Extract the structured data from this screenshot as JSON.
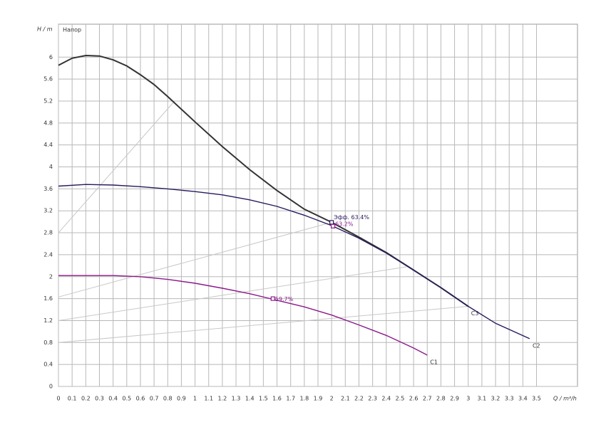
{
  "chart_data": {
    "type": "line",
    "y_label": "H / m",
    "title": "Напор",
    "x_label": "Q / m³/h",
    "xlim": [
      0,
      3.8
    ],
    "ylim": [
      0,
      6.6
    ],
    "xticks": [
      0,
      0.1,
      0.2,
      0.3,
      0.4,
      0.5,
      0.6,
      0.7,
      0.8,
      0.9,
      1,
      1.1,
      1.2,
      1.3,
      1.4,
      1.5,
      1.6,
      1.7,
      1.8,
      1.9,
      2,
      2.1,
      2.2,
      2.3,
      2.4,
      2.5,
      2.6,
      2.7,
      2.8,
      2.9,
      3,
      3.1,
      3.2,
      3.3,
      3.4,
      3.5
    ],
    "yticks": [
      0,
      0.4,
      0.8,
      1.2,
      1.6,
      2,
      2.4,
      2.8,
      3.2,
      3.6,
      4,
      4.4,
      4.8,
      5.2,
      5.6,
      6
    ],
    "grid": true,
    "series": [
      {
        "name": "C3",
        "color": "#333333",
        "x": [
          0,
          0.1,
          0.2,
          0.3,
          0.4,
          0.5,
          0.6,
          0.7,
          0.8,
          0.9,
          1.0,
          1.2,
          1.4,
          1.6,
          1.8,
          2.0,
          2.2,
          2.4,
          2.6,
          2.8,
          3.0
        ],
        "values": [
          5.85,
          5.98,
          6.03,
          6.02,
          5.95,
          5.84,
          5.68,
          5.5,
          5.28,
          5.05,
          4.82,
          4.37,
          3.95,
          3.57,
          3.23,
          2.99,
          2.72,
          2.44,
          2.12,
          1.8,
          1.46
        ]
      },
      {
        "name": "C2",
        "color": "#2a1a5e",
        "x": [
          0,
          0.2,
          0.4,
          0.6,
          0.8,
          1.0,
          1.2,
          1.4,
          1.6,
          1.8,
          2.0,
          2.2,
          2.4,
          2.6,
          2.8,
          3.0,
          3.2,
          3.45
        ],
        "values": [
          3.65,
          3.68,
          3.67,
          3.64,
          3.6,
          3.55,
          3.49,
          3.4,
          3.28,
          3.12,
          2.93,
          2.7,
          2.43,
          2.12,
          1.8,
          1.46,
          1.15,
          0.87
        ]
      },
      {
        "name": "C1",
        "color": "#8b1a8b",
        "x": [
          0,
          0.2,
          0.4,
          0.6,
          0.8,
          1.0,
          1.2,
          1.4,
          1.6,
          1.8,
          2.0,
          2.2,
          2.4,
          2.6,
          2.7
        ],
        "values": [
          2.02,
          2.02,
          2.02,
          2.0,
          1.95,
          1.88,
          1.79,
          1.69,
          1.57,
          1.45,
          1.3,
          1.12,
          0.93,
          0.7,
          0.57
        ]
      }
    ],
    "guide_lines": [
      {
        "color": "#c8c8c8",
        "x": [
          0,
          0.85
        ],
        "values": [
          2.8,
          5.2
        ]
      },
      {
        "color": "#c8c8c8",
        "x": [
          0,
          2.0
        ],
        "values": [
          1.63,
          2.99
        ]
      },
      {
        "color": "#c8c8c8",
        "x": [
          0,
          2.55
        ],
        "values": [
          1.2,
          2.18
        ]
      },
      {
        "color": "#c8c8c8",
        "x": [
          0,
          3.0
        ],
        "values": [
          0.8,
          1.46
        ]
      }
    ],
    "annotations": [
      {
        "x": 2.0,
        "y": 2.99,
        "label": "Эфф. 63.4%",
        "color": "#2a1a5e"
      },
      {
        "x": 2.01,
        "y": 2.92,
        "label": "63.2%",
        "color": "#8b1a8b"
      },
      {
        "x": 1.57,
        "y": 1.6,
        "label": "59.7%",
        "color": "#8b1a8b"
      }
    ]
  }
}
